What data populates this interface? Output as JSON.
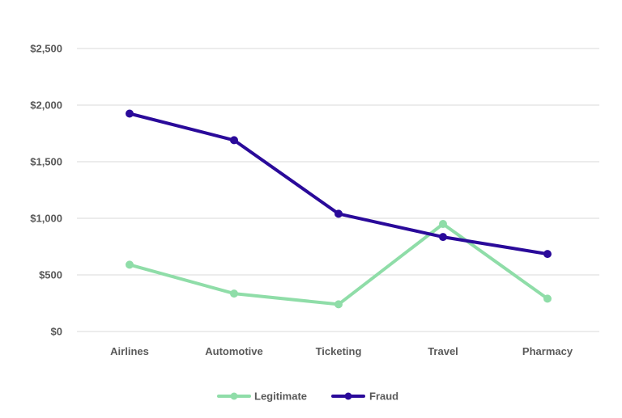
{
  "chart_data": {
    "type": "line",
    "title": "",
    "xlabel": "",
    "ylabel": "",
    "categories": [
      "Airlines",
      "Automotive",
      "Ticketing",
      "Travel",
      "Pharmacy"
    ],
    "ylim": [
      0,
      2500
    ],
    "y_ticks": [
      0,
      500,
      1000,
      1500,
      2000,
      2500
    ],
    "y_tick_labels": [
      "$0",
      "$500",
      "$1,000",
      "$1,500",
      "$2,000",
      "$2,500"
    ],
    "grid": "horizontal",
    "legend_position": "bottom",
    "series": [
      {
        "name": "Legitimate",
        "color": "#8fdda8",
        "values": [
          590,
          335,
          240,
          950,
          290
        ]
      },
      {
        "name": "Fraud",
        "color": "#2a0a9a",
        "values": [
          1925,
          1690,
          1040,
          835,
          685
        ]
      }
    ]
  }
}
